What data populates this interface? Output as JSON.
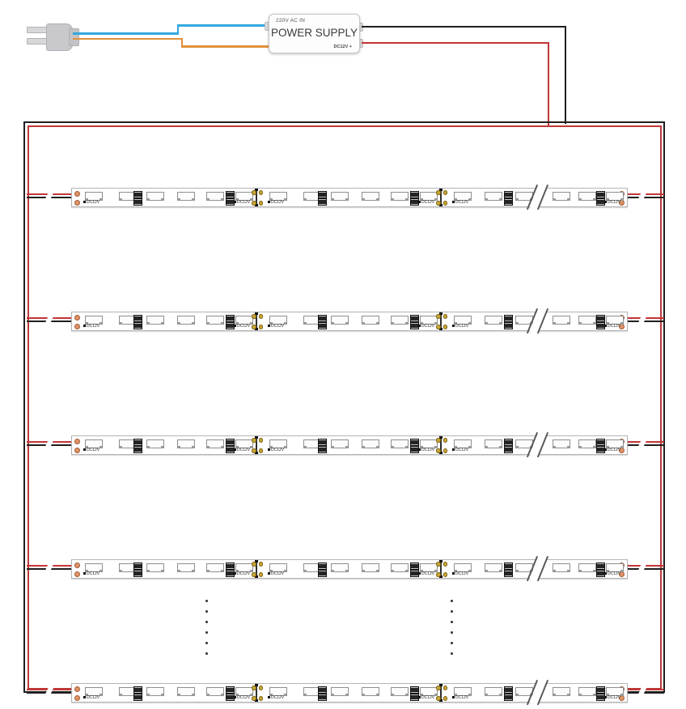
{
  "power_supply": {
    "input_label": "220V AC IN",
    "name_label": "POWER SUPPLY",
    "output_label": "DC12V +"
  },
  "plug": {
    "icon": "ac-plug-icon",
    "prongs": 2
  },
  "colors": {
    "ac_live_blue": "#33a8dd",
    "ac_neutral_orange": "#e0913c",
    "dc_positive_red": "#c23535",
    "dc_negative_black": "#1f1f1f",
    "frame_outer": "#1f1f1f",
    "frame_inner": "#bf3838",
    "solder_pad_copper": "#dd9468",
    "cut_pad_gold": "#c9a636"
  },
  "strip": {
    "voltage_label": "DC12V",
    "row_count": 5,
    "segments_per_row": 3,
    "leds_per_segment": 6,
    "resistor_pairs_per_segment": 2,
    "has_continuation_break": true
  },
  "continuation_dots": {
    "columns": 2,
    "dots_per_column": 6
  }
}
